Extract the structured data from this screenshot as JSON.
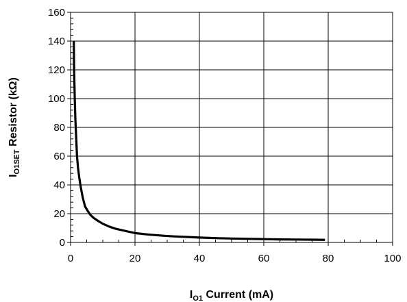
{
  "chart_data": {
    "type": "line",
    "xlabel": {
      "main": "I",
      "sub": "O1",
      "rest": " Current (mA)"
    },
    "ylabel": {
      "main": "I",
      "sub": "O1SET",
      "rest": " Resistor (kΩ)"
    },
    "xlim": [
      0,
      100
    ],
    "ylim": [
      0,
      160
    ],
    "x_ticks": [
      0,
      20,
      40,
      60,
      80,
      100
    ],
    "y_ticks": [
      0,
      20,
      40,
      60,
      80,
      100,
      120,
      140,
      160
    ],
    "grid": true,
    "line_color": "#000000",
    "series": [
      {
        "x": [
          1.0,
          1.1,
          1.3,
          1.5,
          1.8,
          2.0,
          2.3,
          2.7,
          3.2,
          3.8,
          4.5,
          5.3,
          6.2,
          7.2,
          8.5,
          10.0,
          12.0,
          14.0,
          16.0,
          18.0,
          20.0,
          24.0,
          28.0,
          32.0,
          36.0,
          40.0,
          45.0,
          50.0,
          55.0,
          60.0,
          65.0,
          70.0,
          75.0,
          79.0
        ],
        "y": [
          140.0,
          120.0,
          100.0,
          85.0,
          70.0,
          60.0,
          52.0,
          45.0,
          38.0,
          31.0,
          25.0,
          22.0,
          19.0,
          17.0,
          15.0,
          13.0,
          11.0,
          9.5,
          8.5,
          7.5,
          6.5,
          5.5,
          4.8,
          4.2,
          3.8,
          3.4,
          3.0,
          2.7,
          2.5,
          2.3,
          2.1,
          2.0,
          1.9,
          1.8
        ]
      }
    ]
  }
}
